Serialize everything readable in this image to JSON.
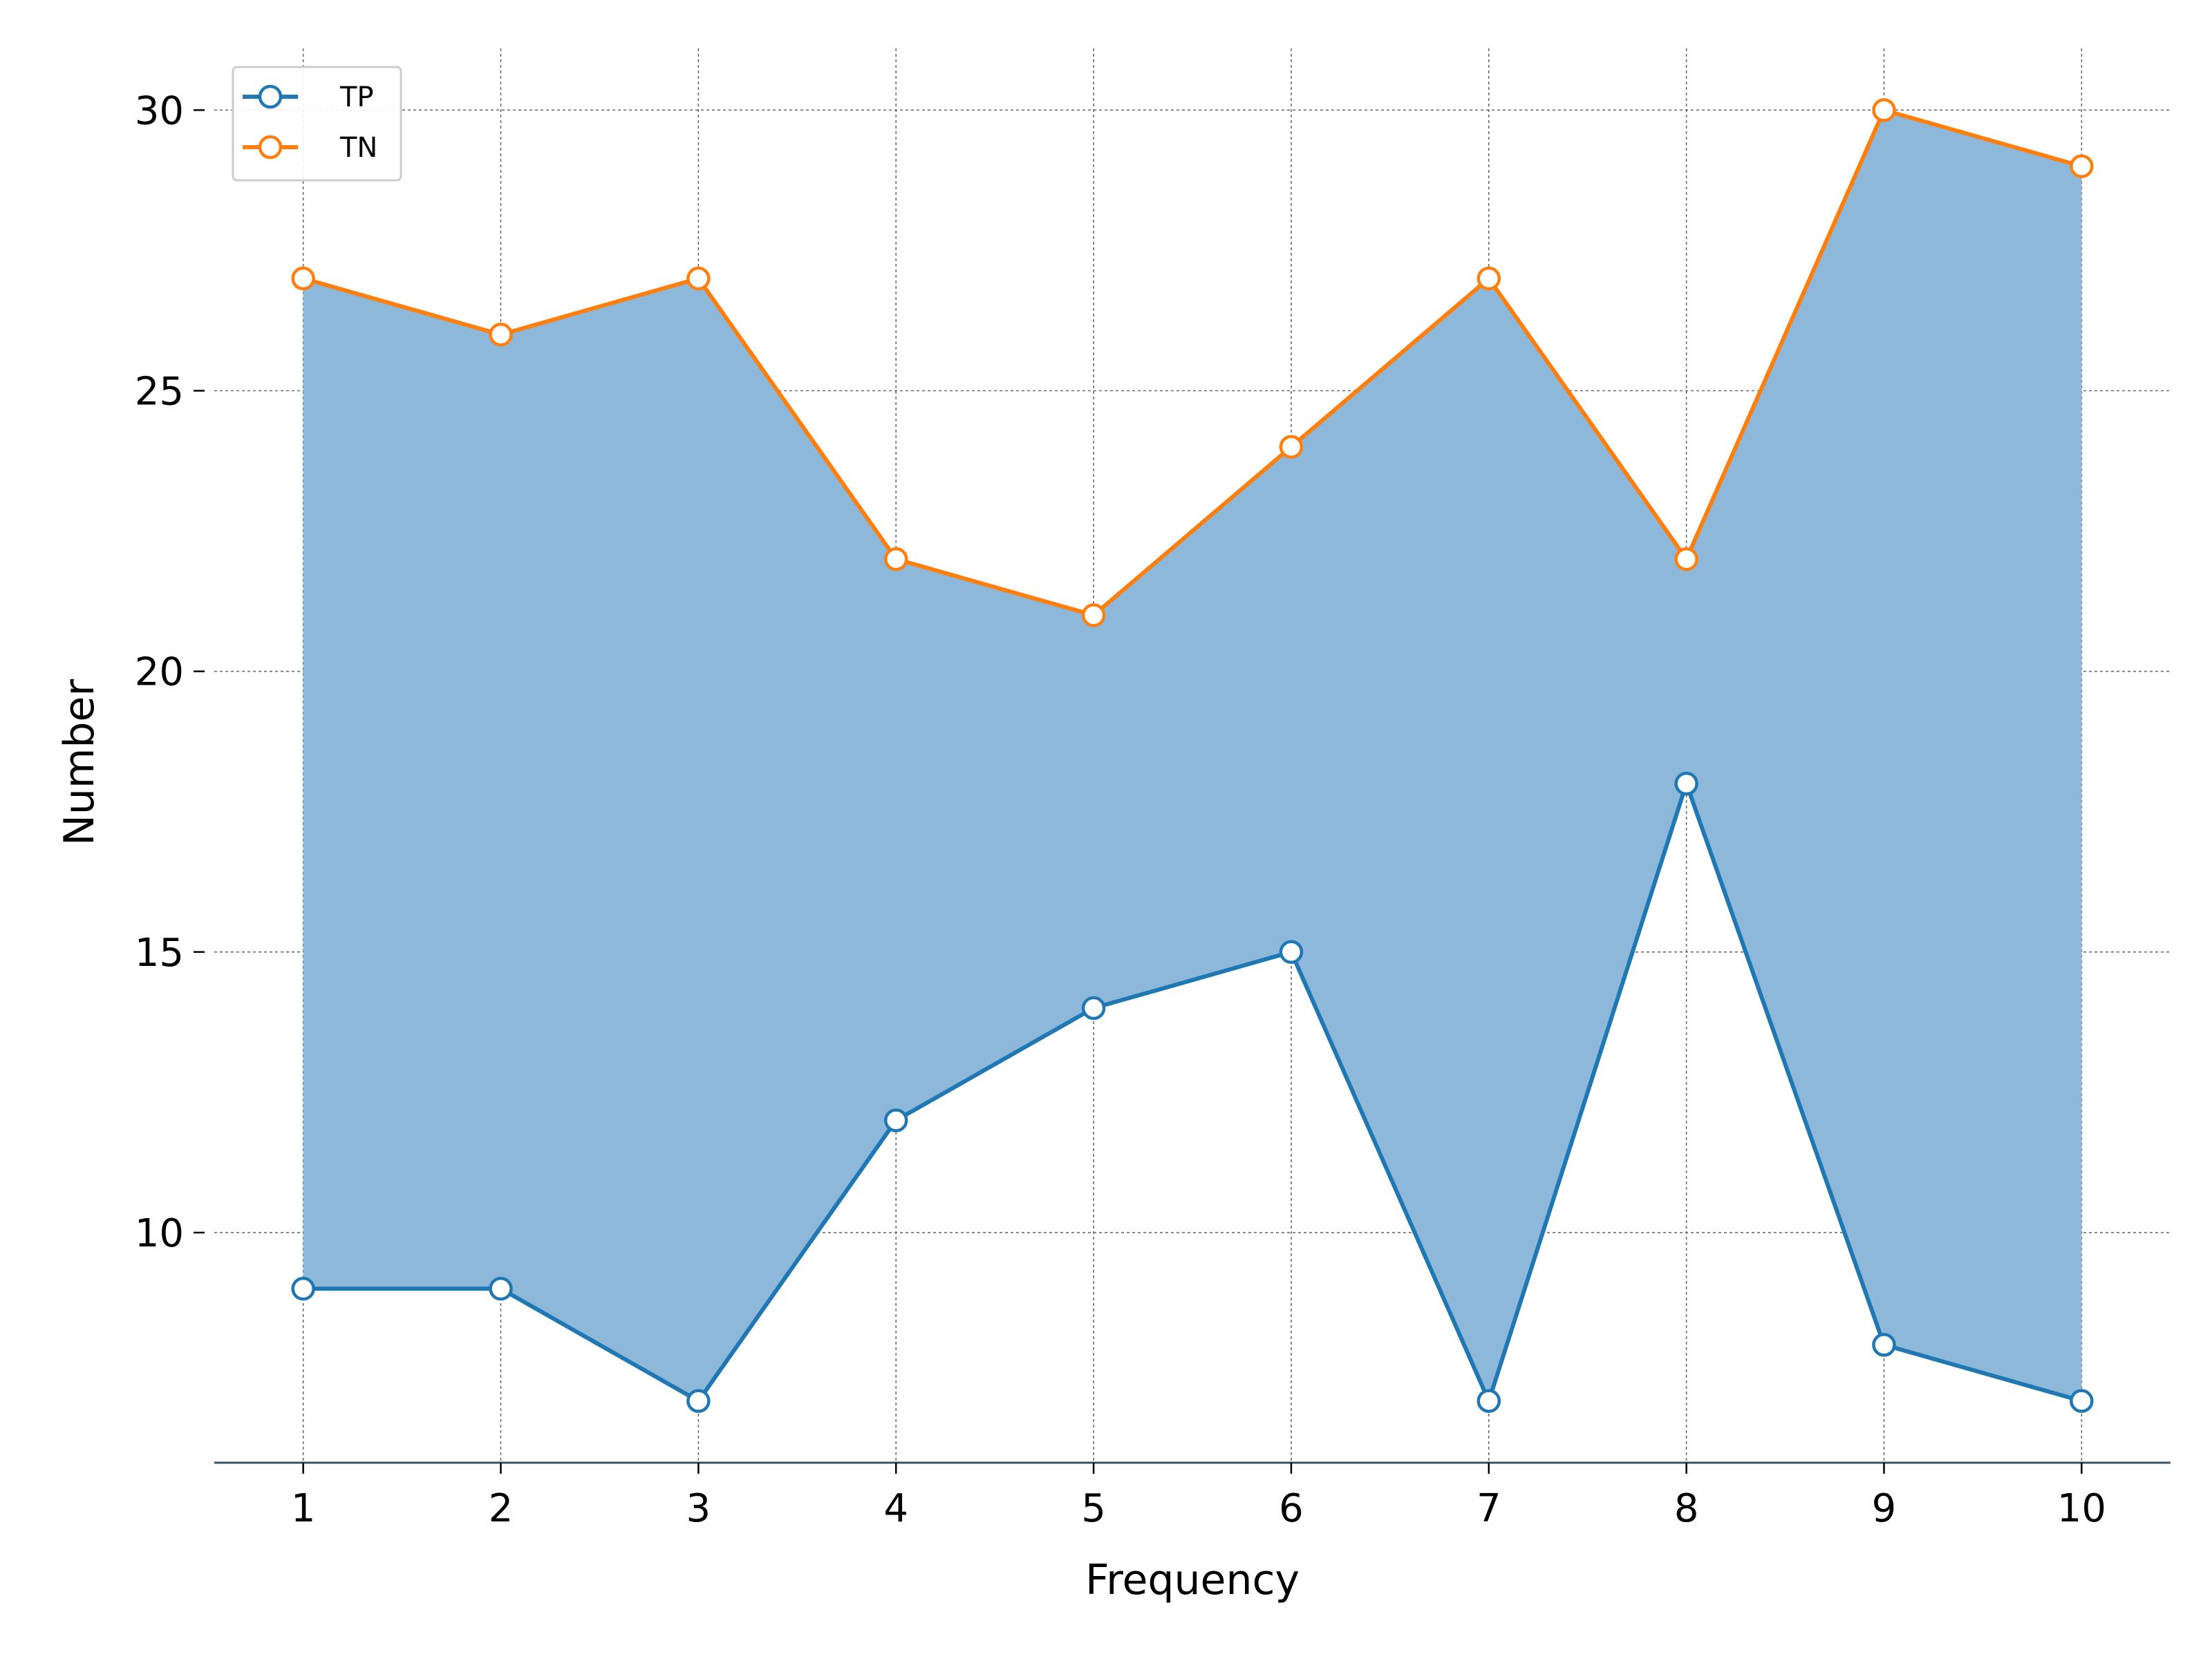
{
  "chart_data": {
    "type": "line",
    "title": "",
    "xlabel": "Frequency",
    "ylabel": "Number",
    "x": [
      1,
      2,
      3,
      4,
      5,
      6,
      7,
      8,
      9,
      10
    ],
    "xlim": [
      0.55,
      10.45
    ],
    "ylim": [
      5.9,
      31.1
    ],
    "yticks": [
      10,
      15,
      20,
      25,
      30
    ],
    "grid": true,
    "legend_position": "top-left",
    "fill_between": {
      "series": [
        "TP",
        "TN"
      ],
      "color": "#8db8d9"
    },
    "series": [
      {
        "name": "TP",
        "color": "#1f77b4",
        "values": [
          9,
          9,
          7,
          12,
          14,
          15,
          7,
          18,
          8,
          7
        ]
      },
      {
        "name": "TN",
        "color": "#ff7f0e",
        "values": [
          27,
          26,
          27,
          22,
          21,
          24,
          27,
          22,
          30,
          29
        ]
      }
    ],
    "axis_color": "#3b5360"
  }
}
